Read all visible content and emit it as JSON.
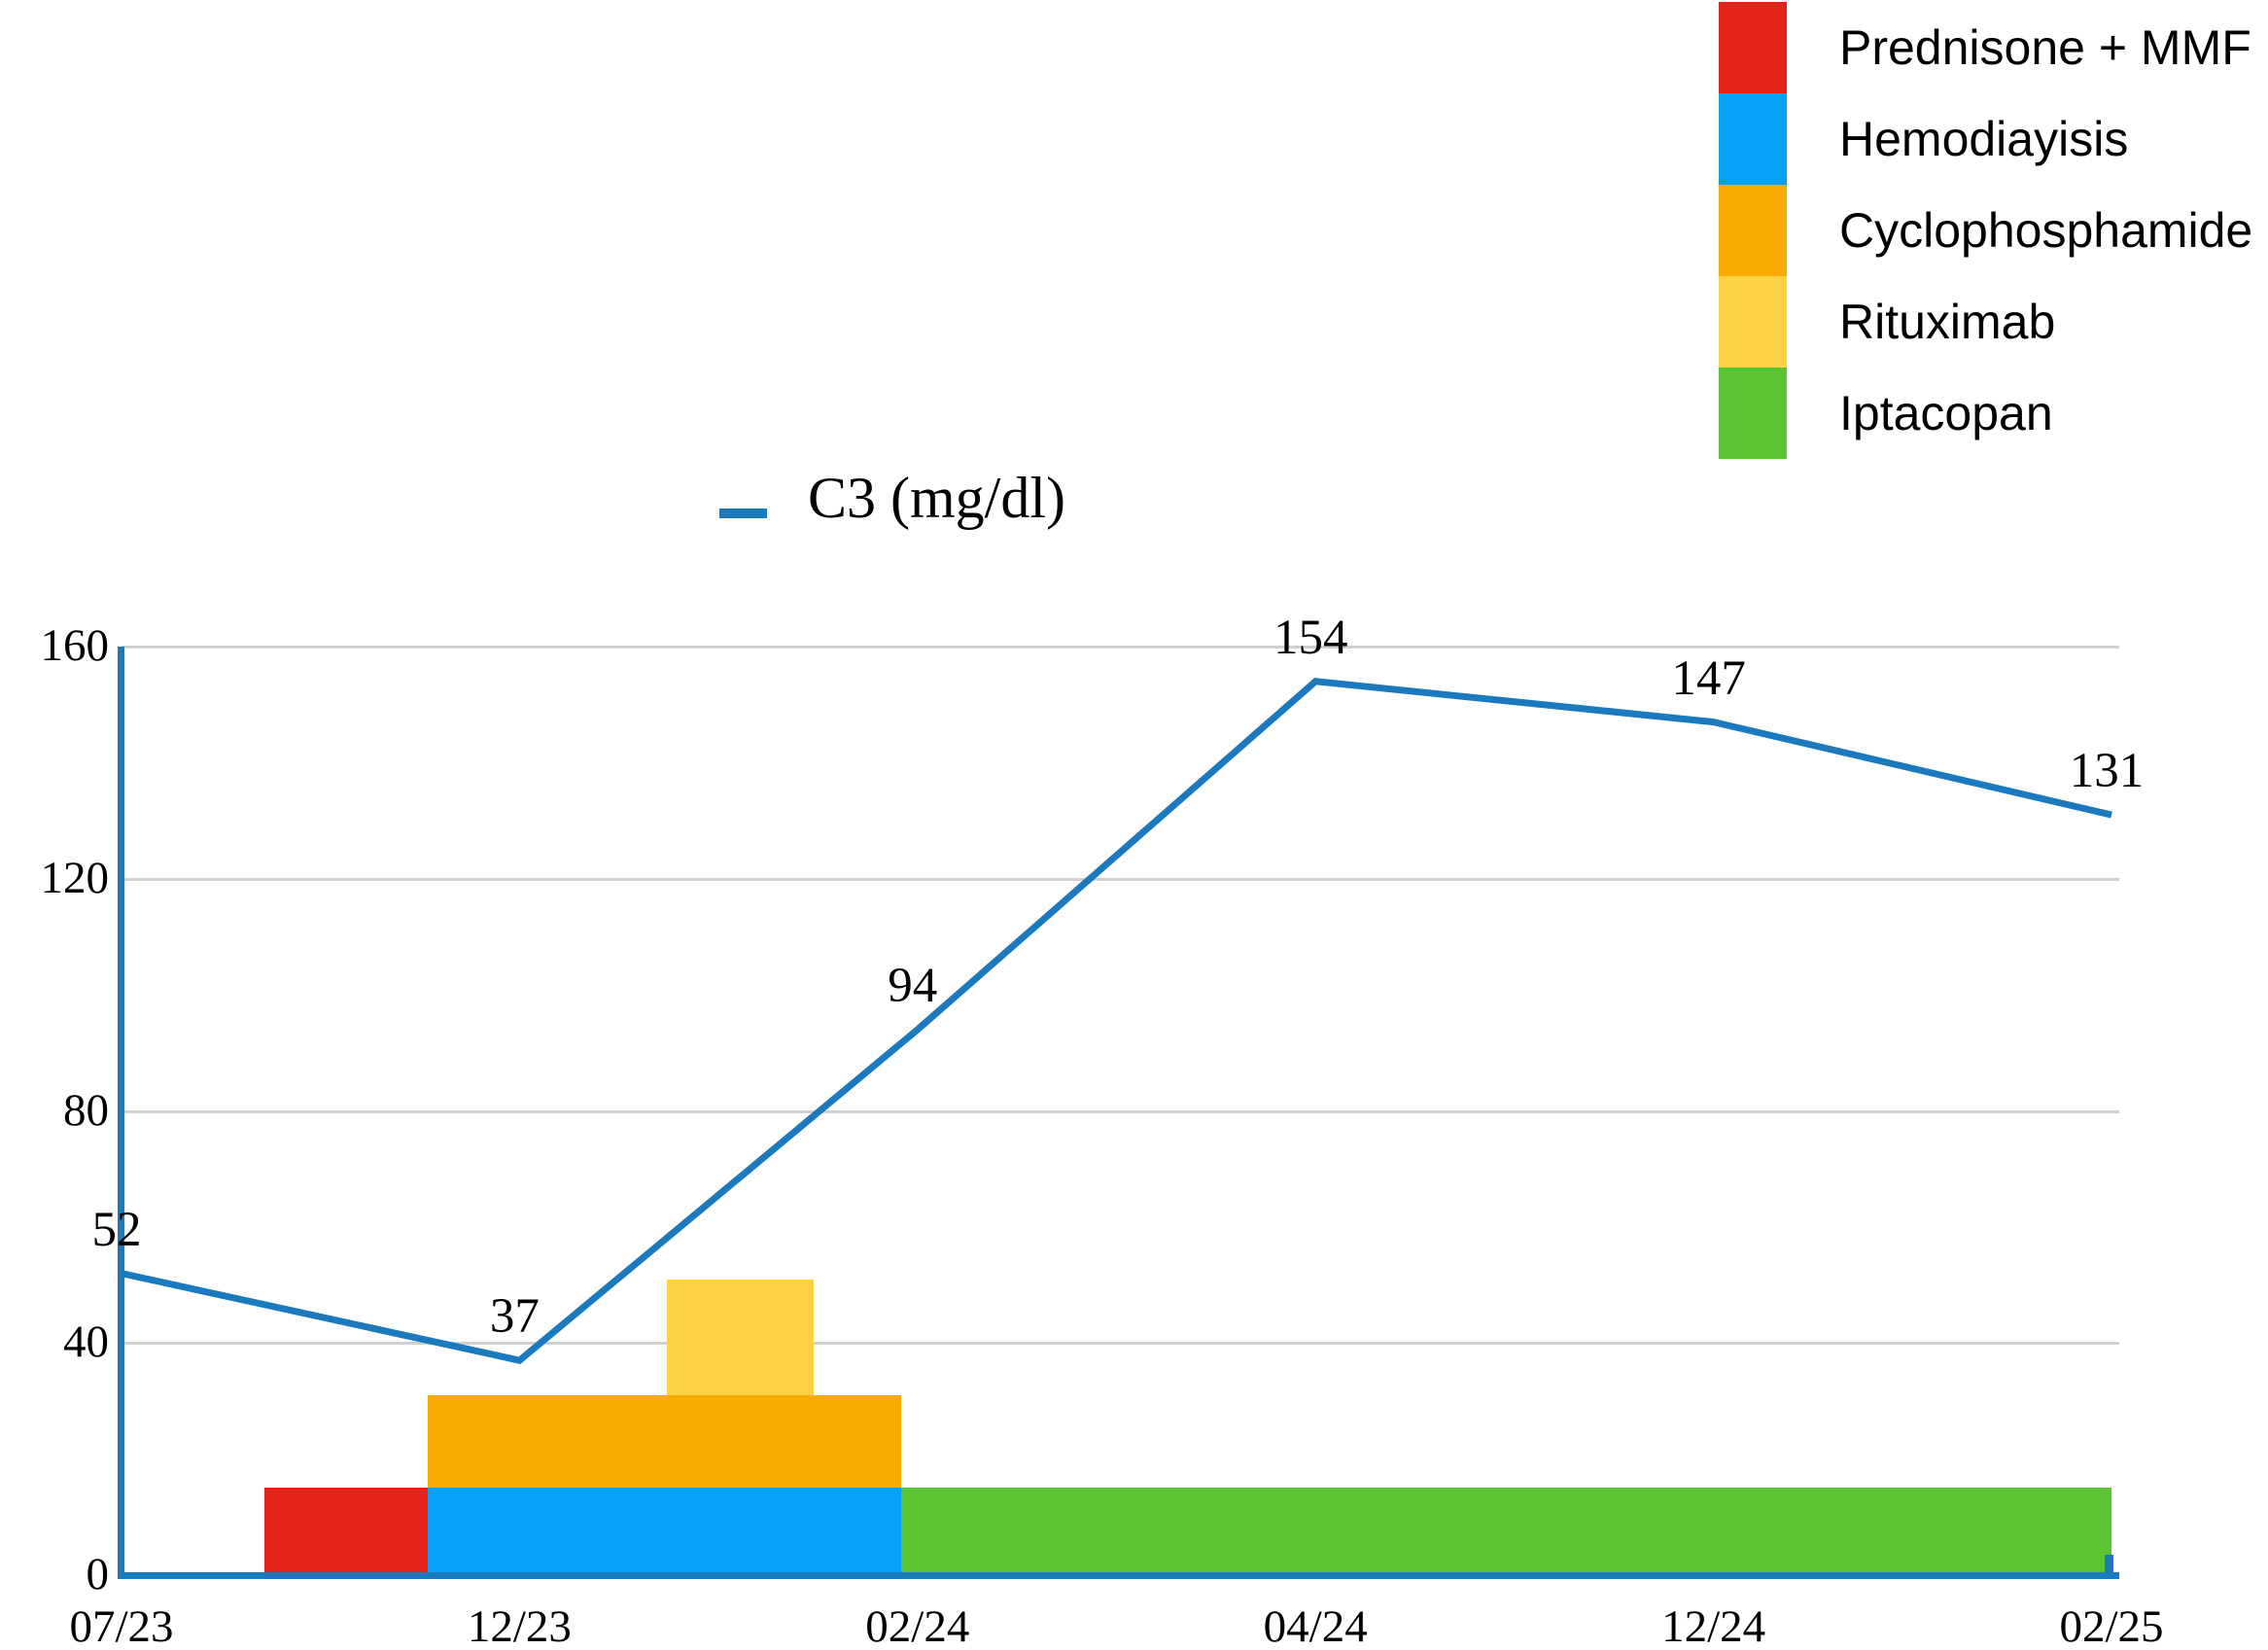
{
  "chart_data": {
    "type": "line",
    "series_label": "C3 (mg/dl)",
    "x_tick_labels": [
      "07/23",
      "12/23",
      "02/24",
      "04/24",
      "12/24",
      "02/25"
    ],
    "values": [
      52,
      37,
      94,
      154,
      147,
      131
    ],
    "point_labels": [
      "52",
      "37",
      "94",
      "154",
      "147",
      "131"
    ],
    "y_ticks": [
      0,
      40,
      80,
      120,
      160
    ],
    "ylim": [
      0,
      160
    ],
    "grid": true,
    "legend_position": "top-right",
    "line_color": "#1b79bd",
    "axis_color": "#1b79bd",
    "gridline_color": "#d0d0d0",
    "treatment_bars": [
      {
        "label": "Prednisone + MMF",
        "color": "#e3231a",
        "x0": 0.36,
        "x1": 0.77,
        "v0": 0,
        "v1": 15
      },
      {
        "label": "Hemodiayisis",
        "color": "#09a1f5",
        "x0": 0.77,
        "x1": 1.96,
        "v0": 0,
        "v1": 15
      },
      {
        "label": "Cyclophosphamide",
        "color": "#f9ab02",
        "x0": 0.77,
        "x1": 1.96,
        "v0": 15,
        "v1": 31
      },
      {
        "label": "Rituximab",
        "color": "#fcd144",
        "x0": 1.37,
        "x1": 1.74,
        "v0": 31,
        "v1": 51
      },
      {
        "label": "Iptacopan",
        "color": "#5cc434",
        "x0": 1.96,
        "x1": 5.0,
        "v0": 0,
        "v1": 15
      }
    ],
    "legend": [
      {
        "label": "Prednisone + MMF",
        "color": "#e3231a"
      },
      {
        "label": "Hemodiayisis",
        "color": "#09a1f5"
      },
      {
        "label": "Cyclophosphamide",
        "color": "#f9ab02"
      },
      {
        "label": "Rituximab",
        "color": "#fcd144"
      },
      {
        "label": "Iptacopan",
        "color": "#5cc434"
      }
    ]
  }
}
